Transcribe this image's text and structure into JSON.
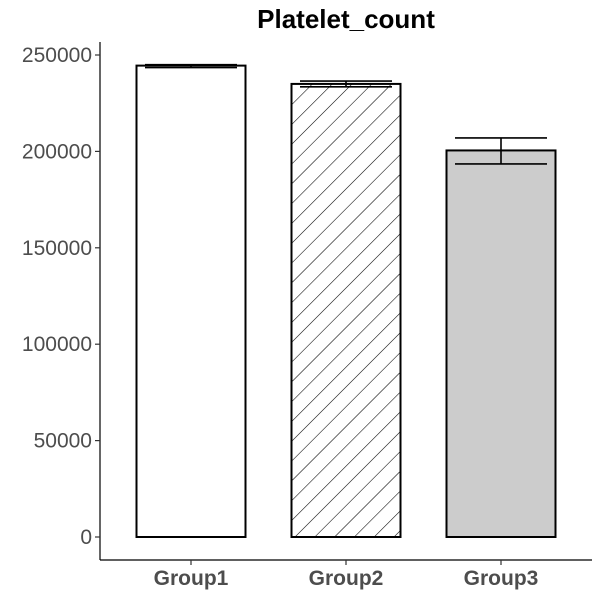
{
  "chart_data": {
    "type": "bar",
    "title": "Platelet_count",
    "xlabel": "",
    "ylabel": "",
    "categories": [
      "Group1",
      "Group2",
      "Group3"
    ],
    "values": [
      244500,
      235000,
      200500
    ],
    "error_low": [
      243500,
      233500,
      193500
    ],
    "error_high": [
      245000,
      236500,
      207000
    ],
    "fills": [
      "#ffffff",
      "hatch",
      "#cccccc"
    ],
    "ylim": [
      0,
      250000
    ],
    "yticks": [
      "0",
      "50000",
      "100000",
      "150000",
      "200000",
      "250000"
    ],
    "grid": false,
    "legend": "none"
  }
}
